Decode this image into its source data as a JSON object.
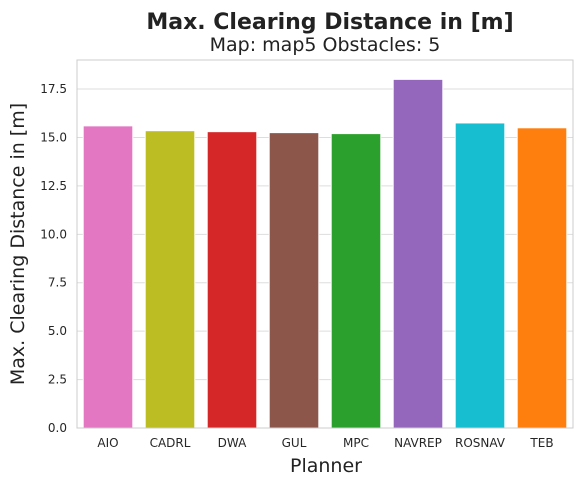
{
  "chart_data": {
    "type": "bar",
    "suptitle": "Max. Clearing Distance in [m]",
    "title": "Map: map5 Obstacles: 5",
    "xlabel": "Planner",
    "ylabel": "Max. Clearing Distance in [m]",
    "categories": [
      "AIO",
      "CADRL",
      "DWA",
      "GUL",
      "MPC",
      "NAVREP",
      "ROSNAV",
      "TEB"
    ],
    "values": [
      15.6,
      15.35,
      15.3,
      15.25,
      15.2,
      18.0,
      15.75,
      15.5
    ],
    "colors": [
      "#e377c2",
      "#bcbd22",
      "#d62728",
      "#8c564b",
      "#2ca02c",
      "#9467bd",
      "#17becf",
      "#ff7f0e"
    ],
    "ylim": [
      0,
      19
    ],
    "yticks": [
      "0.0",
      "2.5",
      "5.0",
      "7.5",
      "10.0",
      "12.5",
      "15.0",
      "17.5"
    ],
    "grid": "horizontal",
    "style": "seaborn-whitegrid"
  }
}
